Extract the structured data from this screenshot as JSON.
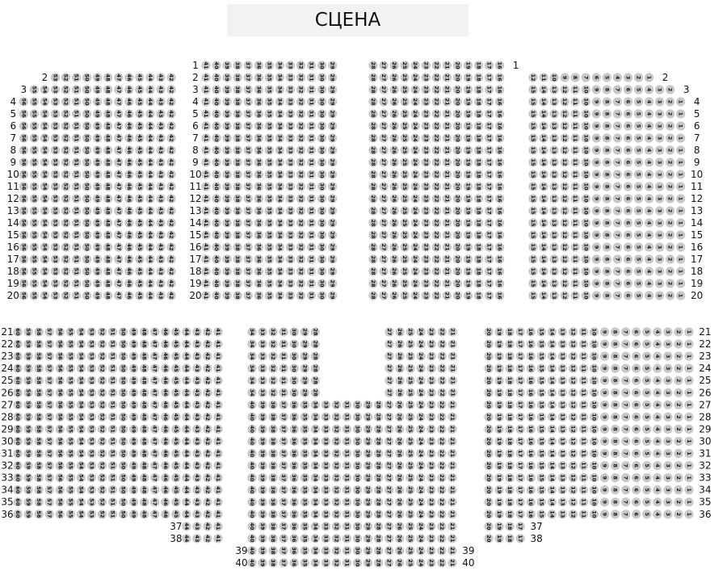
{
  "stage": {
    "label": "СЦЕНА"
  },
  "colors": {
    "seat": "#c8c8c8",
    "stage": "#f2f2f2",
    "text": "#111111"
  },
  "sections": [
    {
      "id": "top-left",
      "groups": [
        {
          "rows": [
            2,
            2
          ],
          "from": 53,
          "to": 42,
          "labels": [
            "left"
          ]
        },
        {
          "rows": [
            3,
            3
          ],
          "from": 55,
          "to": 42,
          "labels": [
            "left"
          ]
        },
        {
          "rows": [
            4,
            20
          ],
          "from": 56,
          "to": 42,
          "labels": [
            "left"
          ]
        }
      ]
    },
    {
      "id": "top-center-left",
      "groups": [
        {
          "rows": [
            1,
            20
          ],
          "from": 41,
          "to": 29,
          "labels": [
            "left"
          ]
        }
      ]
    },
    {
      "id": "top-center-right",
      "groups": [
        {
          "rows": [
            1,
            1
          ],
          "from": 28,
          "to": 16,
          "labels": [
            "right"
          ]
        },
        {
          "rows": [
            2,
            20
          ],
          "from": 28,
          "to": 16,
          "labels": []
        }
      ]
    },
    {
      "id": "top-right",
      "groups": [
        {
          "rows": [
            2,
            2
          ],
          "from": 12,
          "to": 1,
          "labels": [
            "right"
          ]
        },
        {
          "rows": [
            3,
            3
          ],
          "from": 15,
          "to": 2,
          "labels": [
            "right"
          ]
        },
        {
          "rows": [
            4,
            20
          ],
          "from": 15,
          "to": 1,
          "labels": [
            "right"
          ]
        }
      ]
    },
    {
      "id": "bottom-left",
      "groups": [
        {
          "rows": [
            21,
            36
          ],
          "from": 60,
          "to": 41,
          "labels": [
            "left"
          ]
        },
        {
          "rows": [
            37,
            38
          ],
          "from": 44,
          "to": 41,
          "labels": [
            "left"
          ]
        }
      ]
    },
    {
      "id": "bottom-center-upper-left",
      "groups": [
        {
          "rows": [
            21,
            26
          ],
          "from": 34,
          "to": 28,
          "labels": []
        }
      ]
    },
    {
      "id": "bottom-center-upper-right",
      "groups": [
        {
          "rows": [
            21,
            26
          ],
          "from": 27,
          "to": 21,
          "labels": []
        }
      ]
    },
    {
      "id": "bottom-center",
      "groups": [
        {
          "rows": [
            27,
            38
          ],
          "from": 40,
          "to": 21,
          "labels": []
        },
        {
          "rows": [
            39,
            40
          ],
          "from": 40,
          "to": 21,
          "labels": [
            "left",
            "right"
          ]
        }
      ]
    },
    {
      "id": "bottom-right",
      "groups": [
        {
          "rows": [
            21,
            36
          ],
          "from": 20,
          "to": 1,
          "labels": [
            "right"
          ]
        },
        {
          "rows": [
            37,
            38
          ],
          "from": 20,
          "to": 17,
          "labels": [
            "right"
          ]
        }
      ]
    }
  ]
}
